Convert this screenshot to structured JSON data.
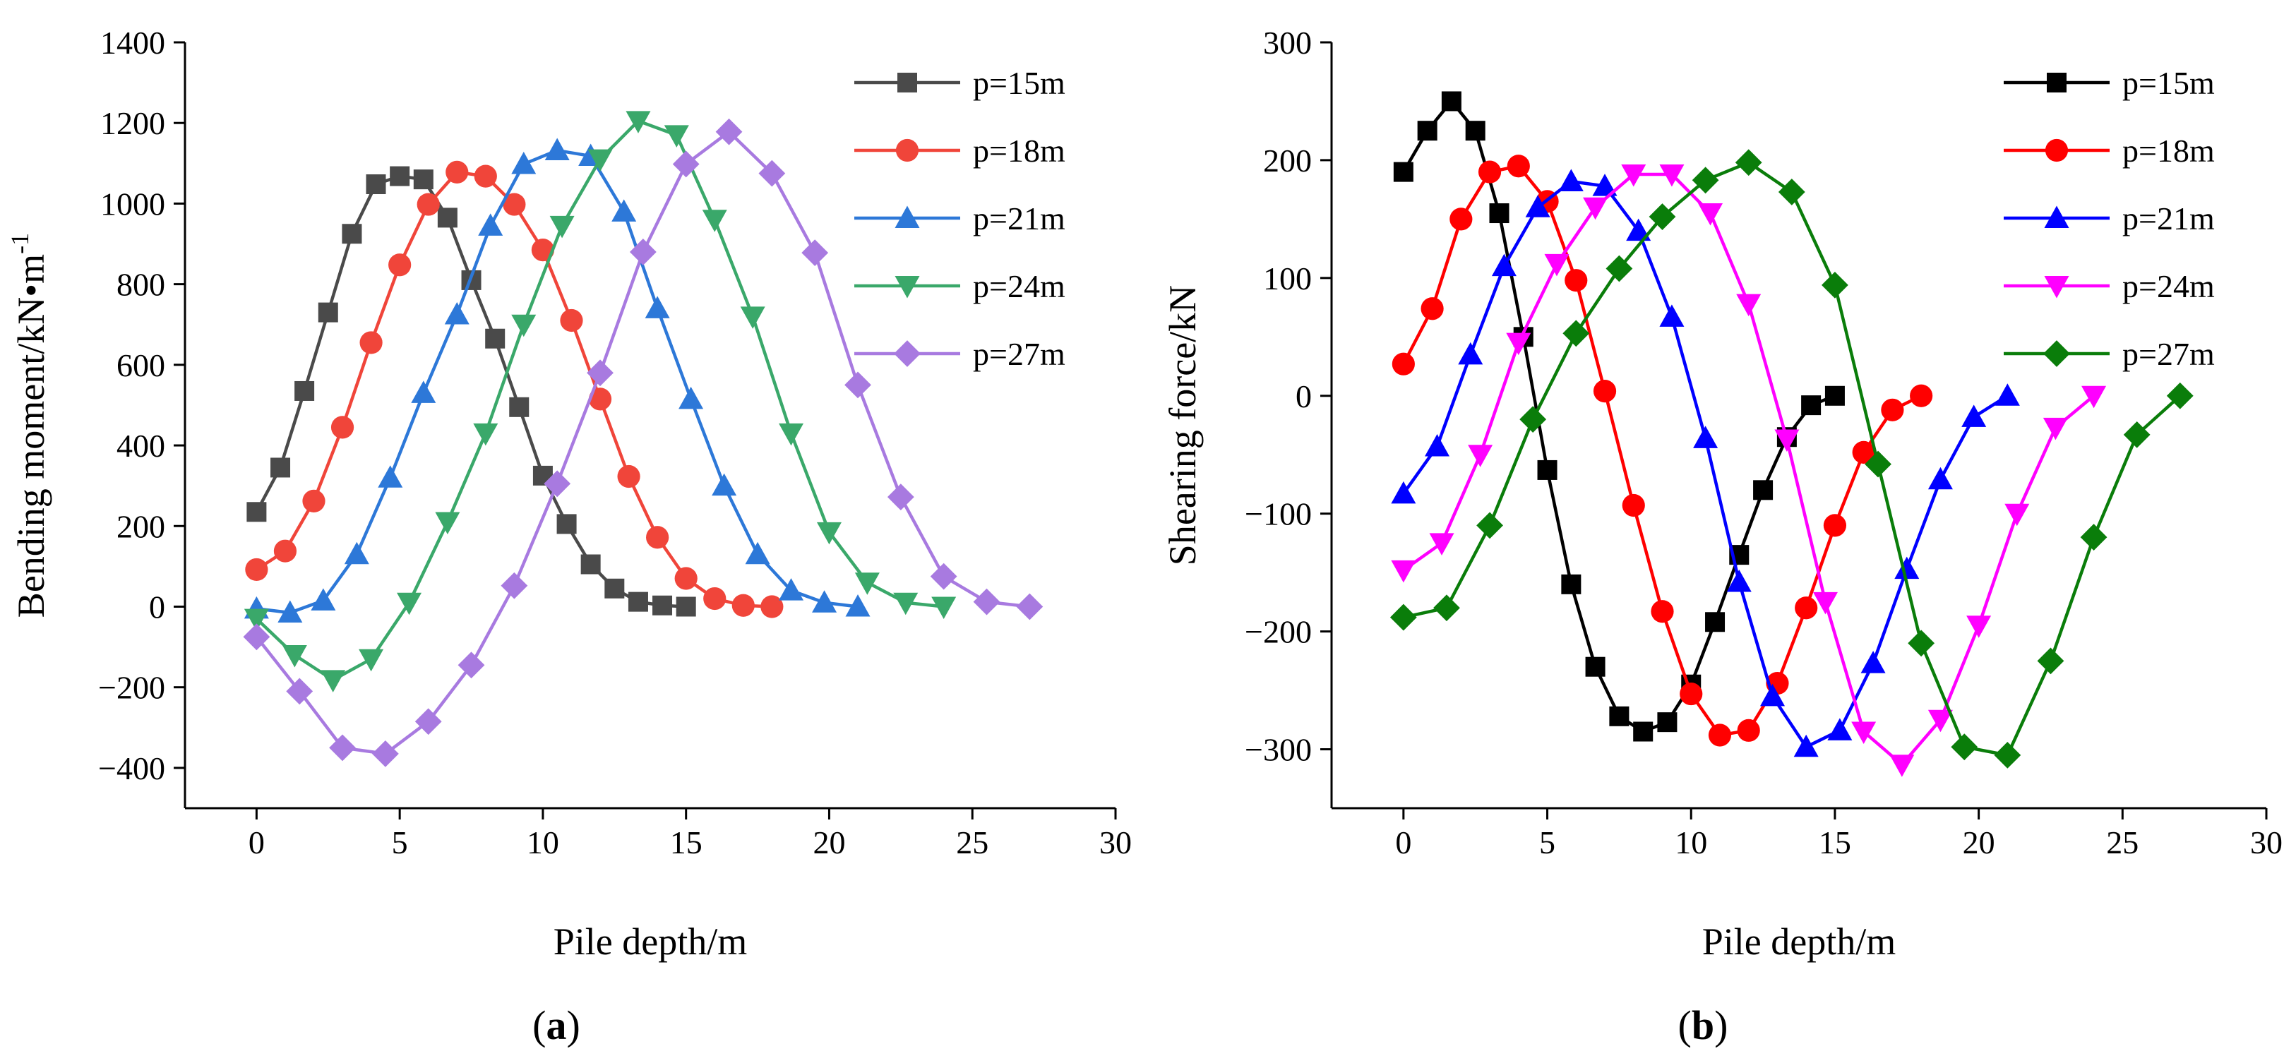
{
  "chart_data": [
    {
      "type": "line",
      "panel_label": "(a)",
      "panel_letter": "a",
      "title": "",
      "xlabel": "Pile depth/m",
      "ylabel": "Bending moment/kN•m",
      "ylabel_superscript": "-1",
      "xlim": [
        -2.5,
        30
      ],
      "ylim": [
        -500,
        1400
      ],
      "xticks": [
        0,
        5,
        10,
        15,
        20,
        25,
        30
      ],
      "yticks": [
        -400,
        -200,
        0,
        200,
        400,
        600,
        800,
        1000,
        1200,
        1400
      ],
      "ytick_labels": [
        "−400",
        "−200",
        "0",
        "200",
        "400",
        "600",
        "800",
        "1000",
        "1200",
        "1400"
      ],
      "legend_position": "top-right",
      "grid": false,
      "series": [
        {
          "name": "p=15m",
          "color": "#4a4a4a",
          "marker": "square",
          "x": [
            0,
            0.83,
            1.67,
            2.5,
            3.33,
            4.17,
            5,
            5.83,
            6.67,
            7.5,
            8.33,
            9.17,
            10,
            10.83,
            11.67,
            12.5,
            13.33,
            14.17,
            15
          ],
          "y": [
            235,
            345,
            535,
            730,
            925,
            1048,
            1068,
            1060,
            965,
            810,
            665,
            495,
            325,
            205,
            105,
            45,
            12,
            3,
            0
          ]
        },
        {
          "name": "p=18m",
          "color": "#f0453a",
          "marker": "circle",
          "x": [
            0,
            1,
            2,
            3,
            4,
            5,
            6,
            7,
            8,
            9,
            10,
            11,
            12,
            13,
            14,
            15,
            16,
            17,
            18
          ],
          "y": [
            92,
            138,
            262,
            445,
            655,
            848,
            998,
            1078,
            1068,
            998,
            885,
            710,
            515,
            323,
            172,
            70,
            20,
            3,
            0
          ]
        },
        {
          "name": "p=21m",
          "color": "#2d78d8",
          "marker": "triangle-up",
          "x": [
            0,
            1.17,
            2.33,
            3.5,
            4.67,
            5.83,
            7,
            8.17,
            9.33,
            10.5,
            11.67,
            12.83,
            14,
            15.17,
            16.33,
            17.5,
            18.67,
            19.83,
            21
          ],
          "y": [
            -5,
            -15,
            15,
            130,
            320,
            530,
            725,
            945,
            1098,
            1132,
            1118,
            980,
            740,
            515,
            300,
            130,
            40,
            10,
            0
          ]
        },
        {
          "name": "p=24m",
          "color": "#3aa86a",
          "marker": "triangle-down",
          "x": [
            0,
            1.33,
            2.67,
            4,
            5.33,
            6.67,
            8,
            9.33,
            10.67,
            12,
            13.33,
            14.67,
            16,
            17.33,
            18.67,
            20,
            21.33,
            22.67,
            24
          ],
          "y": [
            -30,
            -120,
            -182,
            -130,
            10,
            210,
            430,
            700,
            945,
            1110,
            1205,
            1170,
            960,
            720,
            430,
            185,
            60,
            10,
            0
          ]
        },
        {
          "name": "p=27m",
          "color": "#a87ae0",
          "marker": "diamond",
          "x": [
            0,
            1.5,
            3,
            4.5,
            6,
            7.5,
            9,
            10.5,
            12,
            13.5,
            15,
            16.5,
            18,
            19.5,
            21,
            22.5,
            24,
            25.5,
            27
          ],
          "y": [
            -75,
            -210,
            -350,
            -365,
            -285,
            -145,
            52,
            305,
            580,
            880,
            1098,
            1178,
            1075,
            878,
            550,
            272,
            75,
            12,
            0
          ]
        }
      ]
    },
    {
      "type": "line",
      "panel_label": "(b)",
      "panel_letter": "b",
      "title": "",
      "xlabel": "Pile depth/m",
      "ylabel": "Shearing force/kN",
      "xlim": [
        -2.5,
        30
      ],
      "ylim": [
        -350,
        300
      ],
      "xticks": [
        0,
        5,
        10,
        15,
        20,
        25,
        30
      ],
      "yticks": [
        -300,
        -200,
        -100,
        0,
        100,
        200,
        300
      ],
      "ytick_labels": [
        "−300",
        "−200",
        "−100",
        "0",
        "100",
        "200",
        "300"
      ],
      "legend_position": "top-right",
      "grid": false,
      "series": [
        {
          "name": "p=15m",
          "color": "#000000",
          "marker": "square",
          "x": [
            0,
            0.83,
            1.67,
            2.5,
            3.33,
            4.17,
            5,
            5.83,
            6.67,
            7.5,
            8.33,
            9.17,
            10,
            10.83,
            11.67,
            12.5,
            13.33,
            14.17,
            15
          ],
          "y": [
            190,
            225,
            250,
            225,
            155,
            50,
            -63,
            -160,
            -230,
            -272,
            -285,
            -277,
            -245,
            -192,
            -135,
            -80,
            -35,
            -8,
            0
          ]
        },
        {
          "name": "p=18m",
          "color": "#ff0000",
          "marker": "circle",
          "x": [
            0,
            1,
            2,
            3,
            4,
            5,
            6,
            7,
            8,
            9,
            10,
            11,
            12,
            13,
            14,
            15,
            16,
            17,
            18
          ],
          "y": [
            27,
            74,
            150,
            190,
            195,
            165,
            98,
            4,
            -93,
            -183,
            -253,
            -288,
            -284,
            -244,
            -180,
            -110,
            -48,
            -12,
            0
          ]
        },
        {
          "name": "p=21m",
          "color": "#0000ff",
          "marker": "triangle-up",
          "x": [
            0,
            1.17,
            2.33,
            3.5,
            4.67,
            5.83,
            7,
            8.17,
            9.33,
            10.5,
            11.67,
            12.83,
            14,
            15.17,
            16.33,
            17.5,
            18.67,
            19.83,
            21
          ],
          "y": [
            -83,
            -43,
            35,
            110,
            160,
            182,
            178,
            140,
            67,
            -36,
            -158,
            -255,
            -298,
            -284,
            -227,
            -147,
            -71,
            -18,
            0
          ]
        },
        {
          "name": "p=24m",
          "color": "#ff00ff",
          "marker": "triangle-down",
          "x": [
            0,
            1.33,
            2.67,
            4,
            5.33,
            6.67,
            8,
            9.33,
            10.67,
            12,
            13.33,
            14.67,
            16,
            17.33,
            18.67,
            20,
            21.33,
            22.67,
            24
          ],
          "y": [
            -148,
            -125,
            -50,
            45,
            112,
            160,
            188,
            188,
            155,
            78,
            -37,
            -175,
            -285,
            -313,
            -275,
            -195,
            -100,
            -27,
            0
          ]
        },
        {
          "name": "p=27m",
          "color": "#0a7d0a",
          "marker": "diamond",
          "x": [
            0,
            1.5,
            3,
            4.5,
            6,
            7.5,
            9,
            10.5,
            12,
            13.5,
            15,
            16.5,
            18,
            19.5,
            21,
            22.5,
            24,
            25.5,
            27
          ],
          "y": [
            -188,
            -180,
            -110,
            -20,
            53,
            108,
            152,
            183,
            198,
            173,
            94,
            -58,
            -210,
            -298,
            -305,
            -225,
            -120,
            -33,
            0
          ]
        }
      ]
    }
  ]
}
